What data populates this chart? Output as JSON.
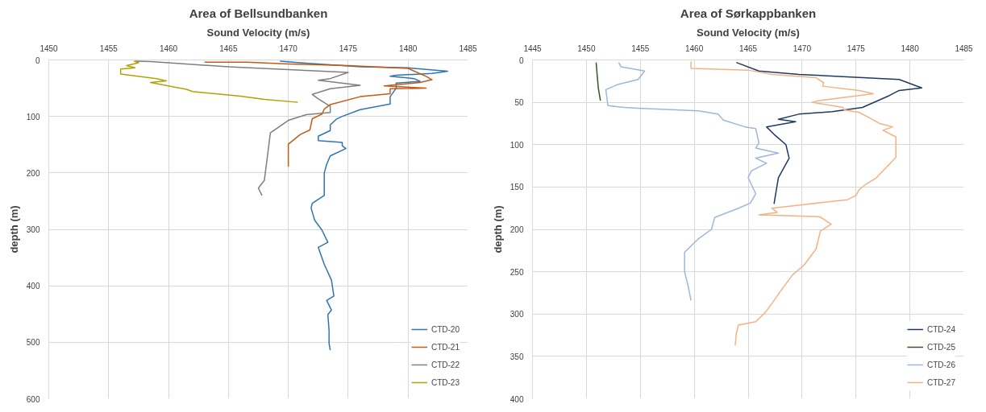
{
  "chart_data": [
    {
      "type": "line",
      "title": "Area of Bellsundbanken",
      "xlabel": "Sound Velocity (m/s)",
      "ylabel": "depth (m)",
      "xlim": [
        1450,
        1485
      ],
      "xticks": [
        1450,
        1455,
        1460,
        1465,
        1470,
        1475,
        1480,
        1485
      ],
      "ylim": [
        600,
        0
      ],
      "yticks": [
        0,
        100,
        200,
        300,
        400,
        500,
        600
      ],
      "grid": true,
      "legend": "bottom right",
      "series": [
        {
          "name": "CTD-20",
          "color": "#2e75b6",
          "x": [
            1469.3,
            1471,
            1476,
            1480,
            1483.3,
            1482,
            1479,
            1478.5,
            1480.5,
            1481,
            1479,
            1479,
            1478.5,
            1478.5,
            1476,
            1474.5,
            1474,
            1473.5,
            1473.5,
            1472.5,
            1472.5,
            1474.5,
            1474.5,
            1474.8,
            1473.5,
            1473.2,
            1473,
            1473,
            1473,
            1472,
            1471.9,
            1472.2,
            1472.8,
            1473.3,
            1472.5,
            1473,
            1473.6,
            1473.8,
            1473.2,
            1473.6,
            1473.3,
            1473.4,
            1473.4,
            1473.5
          ],
          "values": [
            2,
            5,
            12,
            14,
            20,
            24,
            27,
            29,
            33,
            38,
            41,
            50,
            65,
            78,
            88,
            100,
            105,
            115,
            125,
            135,
            143,
            146,
            152,
            157,
            170,
            185,
            200,
            223,
            240,
            254,
            262,
            284,
            301,
            323,
            332,
            362,
            390,
            418,
            426,
            443,
            451,
            479,
            502,
            514
          ]
        },
        {
          "name": "CTD-21",
          "color": "#c55a11",
          "x": [
            1463,
            1466.5,
            1470,
            1475,
            1480,
            1481.5,
            1482,
            1481,
            1478,
            1481.5,
            1478.5,
            1478.5,
            1476,
            1473.5,
            1473,
            1472.8,
            1472,
            1471.8,
            1471,
            1470,
            1470
          ],
          "values": [
            4,
            4,
            7,
            10,
            15,
            29,
            35,
            40,
            46,
            50,
            51,
            60,
            65,
            79,
            87,
            96,
            104,
            124,
            132,
            149,
            189
          ]
        },
        {
          "name": "CTD-22",
          "color": "#7f7f7f",
          "x": [
            1457.2,
            1458.5,
            1465,
            1470,
            1475,
            1473.5,
            1472.5,
            1476,
            1473.5,
            1472,
            1472.5,
            1473.5,
            1473.5,
            1471.5,
            1470,
            1468.5,
            1468.3,
            1468,
            1467.5,
            1467.8
          ],
          "values": [
            2,
            3,
            12,
            17,
            22,
            33,
            36,
            45,
            51,
            61,
            69,
            82,
            93,
            97,
            107,
            129,
            163,
            213,
            227,
            240
          ]
        },
        {
          "name": "CTD-23",
          "color": "#b4a009",
          "x": [
            1457.1,
            1457.5,
            1456.5,
            1457.2,
            1456,
            1456,
            1459,
            1459.8,
            1458.5,
            1460.5,
            1461.5,
            1462,
            1465,
            1466,
            1468,
            1470.8
          ],
          "values": [
            2,
            5,
            10,
            14,
            16,
            25,
            33,
            37,
            40,
            48,
            52,
            56,
            62,
            64,
            70,
            75
          ]
        }
      ]
    },
    {
      "type": "line",
      "title": "Area of Sørkappbanken",
      "xlabel": "Sound Velocity (m/s)",
      "ylabel": "depth (m)",
      "xlim": [
        1445,
        1485
      ],
      "xticks": [
        1445,
        1450,
        1455,
        1460,
        1465,
        1470,
        1475,
        1480,
        1485
      ],
      "ylim": [
        400,
        0
      ],
      "yticks": [
        0,
        50,
        100,
        150,
        200,
        250,
        300,
        350,
        400
      ],
      "grid": true,
      "legend": "bottom right",
      "series": [
        {
          "name": "CTD-24",
          "color": "#203864",
          "x": [
            1463.9,
            1466.0,
            1469.7,
            1479.0,
            1481.1,
            1479.0,
            1478.1,
            1475.6,
            1472.8,
            1469.7,
            1467.8,
            1469.4,
            1466.7,
            1467.5,
            1468.5,
            1468.8,
            1467.8,
            1467.4
          ],
          "values": [
            3,
            13,
            17,
            23,
            33,
            36,
            42,
            56,
            61,
            64,
            70,
            73,
            79,
            89,
            100,
            116,
            139,
            170
          ]
        },
        {
          "name": "CTD-25",
          "color": "#375623",
          "x": [
            1450.9,
            1451.0,
            1451.1,
            1451.3
          ],
          "values": [
            3,
            18,
            33,
            48
          ]
        },
        {
          "name": "CTD-26",
          "color": "#9fb6d8",
          "x": [
            1453.0,
            1453.2,
            1455.4,
            1454.8,
            1452.9,
            1451.8,
            1452.0,
            1453.5,
            1454.8,
            1460.4,
            1462.2,
            1462.7,
            1464.7,
            1465.7,
            1466.0,
            1465.7,
            1467.8,
            1465.7,
            1466.7,
            1465.3,
            1465.0,
            1465.7,
            1465.2,
            1464.1,
            1461.9,
            1461.6,
            1460.4,
            1459.1,
            1459.1,
            1459.4,
            1459.7
          ],
          "values": [
            3,
            8,
            13,
            23,
            29,
            35,
            54,
            56,
            57,
            60,
            64,
            71,
            79,
            81,
            98,
            104,
            110,
            116,
            122,
            131,
            139,
            158,
            169,
            175,
            186,
            200,
            211,
            227,
            250,
            265,
            284
          ]
        },
        {
          "name": "CTD-27",
          "color": "#f4b183",
          "x": [
            1459.7,
            1459.7,
            1465.0,
            1467.2,
            1471.3,
            1472.0,
            1471.9,
            1475.3,
            1476.6,
            1471.6,
            1470.9,
            1473.8,
            1473.9,
            1475.3,
            1476.2,
            1477.2,
            1478.4,
            1477.5,
            1478.7,
            1478.7,
            1478.1,
            1476.9,
            1475.9,
            1475.3,
            1475.0,
            1474.2,
            1470.0,
            1467.2,
            1467.7,
            1466.0,
            1471.6,
            1472.0,
            1472.7,
            1471.7,
            1471.3,
            1470.2,
            1469.1,
            1468.0,
            1467.4,
            1466.6,
            1465.7,
            1464.1,
            1463.9,
            1463.8
          ],
          "values": [
            2,
            10,
            12,
            17,
            21,
            27,
            31,
            36,
            40,
            48,
            50,
            56,
            59,
            62,
            68,
            75,
            79,
            83,
            91,
            115,
            123,
            139,
            147,
            153,
            160,
            165,
            171,
            175,
            180,
            183,
            185,
            188,
            194,
            202,
            223,
            242,
            254,
            273,
            284,
            298,
            309,
            313,
            323,
            337
          ]
        }
      ]
    }
  ]
}
